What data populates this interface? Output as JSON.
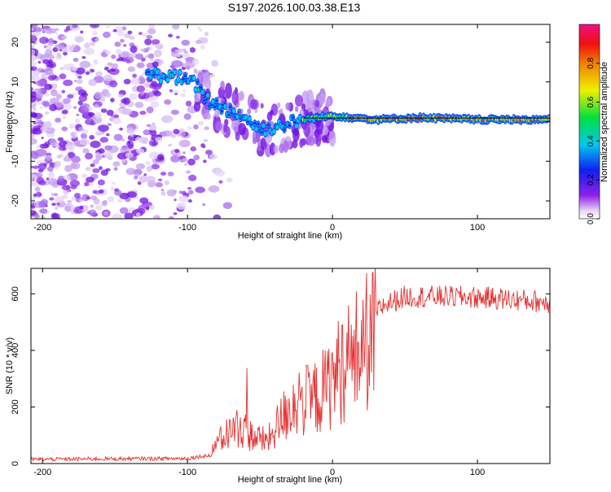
{
  "title": "S197.2026.100.03.38.E13",
  "chart_data": [
    {
      "type": "heatmap",
      "xlabel": "Height of straight line (km)",
      "ylabel": "Frequency (Hz)",
      "xlim": [
        -208,
        150
      ],
      "ylim": [
        -24.5,
        24.5
      ],
      "xticks": [
        -200,
        -100,
        0,
        100
      ],
      "yticks": [
        -20,
        -10,
        0,
        10,
        20
      ],
      "colorbar": {
        "label": "Normalized spectral amplitude",
        "range": [
          0,
          1
        ],
        "ticks": [
          0.0,
          0.2,
          0.4,
          0.6,
          0.8
        ],
        "tick_labels": [
          "0.0",
          "0.2",
          "0.4",
          "0.6",
          "0.8"
        ]
      },
      "ridge": {
        "description_points": [
          {
            "x": -125,
            "freq": 12.0
          },
          {
            "x": -105,
            "freq": 11.0
          },
          {
            "x": -95,
            "freq": 9.5
          },
          {
            "x": -85,
            "freq": 5.0
          },
          {
            "x": -75,
            "freq": 3.5
          },
          {
            "x": -60,
            "freq": 1.0
          },
          {
            "x": -50,
            "freq": -2.0
          },
          {
            "x": -35,
            "freq": -1.0
          },
          {
            "x": -20,
            "freq": 0.5
          },
          {
            "x": 0,
            "freq": 1.5
          },
          {
            "x": 30,
            "freq": 0.5
          },
          {
            "x": 60,
            "freq": 1.0
          },
          {
            "x": 100,
            "freq": 0.5
          },
          {
            "x": 150,
            "freq": 0.5
          }
        ]
      }
    },
    {
      "type": "line",
      "xlabel": "Height of straight line (km)",
      "ylabel": "SNR (10 * v/v)",
      "xlim": [
        -208,
        150
      ],
      "ylim": [
        0,
        690
      ],
      "xticks": [
        -200,
        -100,
        0,
        100
      ],
      "yticks": [
        0,
        200,
        400,
        600
      ],
      "series": [
        {
          "name": "SNR",
          "color": "#e83030",
          "envelope": [
            {
              "x": -208,
              "y": 15
            },
            {
              "x": -100,
              "y": 18
            },
            {
              "x": -85,
              "y": 30
            },
            {
              "x": -75,
              "y": 110
            },
            {
              "x": -65,
              "y": 150
            },
            {
              "x": -55,
              "y": 110
            },
            {
              "x": -45,
              "y": 90
            },
            {
              "x": -35,
              "y": 180
            },
            {
              "x": -25,
              "y": 260
            },
            {
              "x": -15,
              "y": 250
            },
            {
              "x": -5,
              "y": 300
            },
            {
              "x": 5,
              "y": 380
            },
            {
              "x": 15,
              "y": 440
            },
            {
              "x": 25,
              "y": 500
            },
            {
              "x": 35,
              "y": 560
            },
            {
              "x": 50,
              "y": 590
            },
            {
              "x": 80,
              "y": 590
            },
            {
              "x": 110,
              "y": 585
            },
            {
              "x": 150,
              "y": 570
            }
          ]
        }
      ]
    }
  ]
}
